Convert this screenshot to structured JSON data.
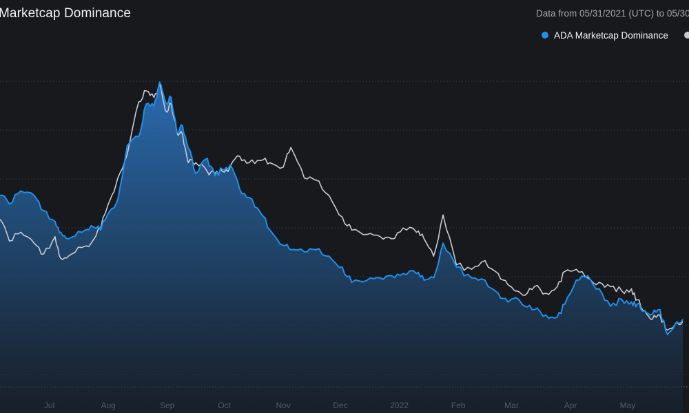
{
  "header": {
    "title": "Marketcap Dominance",
    "date_range": "Data from 05/31/2021 (UTC) to 05/30"
  },
  "colors": {
    "background": "#18191d",
    "ada": "#1e90ec",
    "comparison": "#c8cbd3",
    "grid": "#3a3d45"
  },
  "chart_data": {
    "type": "area",
    "title": "Marketcap Dominance",
    "x_range": [
      "2021-05-31",
      "2022-05-30"
    ],
    "x_tick_labels": [
      "Jul",
      "Aug",
      "Sep",
      "Oct",
      "Nov",
      "Dec",
      "2022",
      "Feb",
      "Mar",
      "Apr",
      "May"
    ],
    "grid": "horizontal-dotted",
    "legend": "top-right",
    "series": [
      {
        "name": "ADA Marketcap Dominance",
        "color": "#1e90ec",
        "x": [
          "2021-06-05",
          "2021-06-10",
          "2021-06-16",
          "2021-06-23",
          "2021-06-28",
          "2021-07-04",
          "2021-07-07",
          "2021-07-11",
          "2021-07-18",
          "2021-07-23",
          "2021-07-28",
          "2021-08-02",
          "2021-08-06",
          "2021-08-11",
          "2021-08-17",
          "2021-08-21",
          "2021-08-25",
          "2021-08-28",
          "2021-08-31",
          "2021-09-03",
          "2021-09-06",
          "2021-09-09",
          "2021-09-12",
          "2021-09-16",
          "2021-09-22",
          "2021-09-26",
          "2021-09-30",
          "2021-10-04",
          "2021-10-09",
          "2021-10-14",
          "2021-10-20",
          "2021-10-25",
          "2021-11-01",
          "2021-11-05",
          "2021-11-12",
          "2021-11-18",
          "2021-11-25",
          "2021-12-02",
          "2021-12-07",
          "2021-12-15",
          "2021-12-22",
          "2021-12-28",
          "2022-01-03",
          "2022-01-10",
          "2022-01-14",
          "2022-01-19",
          "2022-01-24",
          "2022-01-31",
          "2022-02-08",
          "2022-02-15",
          "2022-02-22",
          "2022-02-27",
          "2022-03-03",
          "2022-03-08",
          "2022-03-13",
          "2022-03-19",
          "2022-03-25",
          "2022-03-29",
          "2022-04-04",
          "2022-04-10",
          "2022-04-16",
          "2022-04-22",
          "2022-04-28",
          "2022-05-03",
          "2022-05-06",
          "2022-05-10",
          "2022-05-14",
          "2022-05-18",
          "2022-05-22",
          "2022-05-26",
          "2022-05-30"
        ],
        "values": [
          4.45,
          4.25,
          4.55,
          4.45,
          4.1,
          3.85,
          3.6,
          3.45,
          3.6,
          3.75,
          3.65,
          4.1,
          4.35,
          5.6,
          5.8,
          6.55,
          6.5,
          7.05,
          6.6,
          6.7,
          5.9,
          6.05,
          5.55,
          4.95,
          5.3,
          4.9,
          5.05,
          5.15,
          4.6,
          4.4,
          4.05,
          3.65,
          3.3,
          3.2,
          3.15,
          3.2,
          3.05,
          2.8,
          2.45,
          2.5,
          2.55,
          2.6,
          2.65,
          2.65,
          2.5,
          2.55,
          3.35,
          2.8,
          2.55,
          2.5,
          2.2,
          2.0,
          2.1,
          1.9,
          1.82,
          1.7,
          1.65,
          1.95,
          2.5,
          2.6,
          2.3,
          1.9,
          2.05,
          2.0,
          1.95,
          1.8,
          1.72,
          1.82,
          1.25,
          1.5,
          1.6
        ]
      },
      {
        "name": "",
        "color": "#c8cbd3",
        "x": [
          "2021-06-05",
          "2021-06-10",
          "2021-06-16",
          "2021-06-23",
          "2021-06-28",
          "2021-07-04",
          "2021-07-07",
          "2021-07-11",
          "2021-07-18",
          "2021-07-23",
          "2021-07-28",
          "2021-08-02",
          "2021-08-06",
          "2021-08-11",
          "2021-08-17",
          "2021-08-21",
          "2021-08-25",
          "2021-08-28",
          "2021-08-31",
          "2021-09-03",
          "2021-09-06",
          "2021-09-09",
          "2021-09-12",
          "2021-09-16",
          "2021-09-22",
          "2021-09-26",
          "2021-09-30",
          "2021-10-04",
          "2021-10-09",
          "2021-10-14",
          "2021-10-20",
          "2021-10-25",
          "2021-11-01",
          "2021-11-05",
          "2021-11-12",
          "2021-11-18",
          "2021-11-25",
          "2021-12-02",
          "2021-12-07",
          "2021-12-15",
          "2021-12-22",
          "2021-12-28",
          "2022-01-03",
          "2022-01-10",
          "2022-01-14",
          "2022-01-19",
          "2022-01-24",
          "2022-01-31",
          "2022-02-08",
          "2022-02-15",
          "2022-02-22",
          "2022-02-27",
          "2022-03-03",
          "2022-03-08",
          "2022-03-13",
          "2022-03-19",
          "2022-03-25",
          "2022-03-29",
          "2022-04-04",
          "2022-04-10",
          "2022-04-16",
          "2022-04-22",
          "2022-04-28",
          "2022-05-03",
          "2022-05-06",
          "2022-05-10",
          "2022-05-14",
          "2022-05-18",
          "2022-05-22",
          "2022-05-26",
          "2022-05-30"
        ],
        "values": [
          3.9,
          3.4,
          3.6,
          3.35,
          3.1,
          3.5,
          3.0,
          3.05,
          3.25,
          3.35,
          3.7,
          4.35,
          4.85,
          5.4,
          6.6,
          6.85,
          6.7,
          7.0,
          6.4,
          6.55,
          5.9,
          5.85,
          5.2,
          5.2,
          5.0,
          4.95,
          5.0,
          5.1,
          5.35,
          5.2,
          5.25,
          5.2,
          5.1,
          5.55,
          4.85,
          4.8,
          4.45,
          3.95,
          3.65,
          3.55,
          3.5,
          3.45,
          3.7,
          3.6,
          3.45,
          3.05,
          4.0,
          2.85,
          2.75,
          2.95,
          2.65,
          2.4,
          2.25,
          2.15,
          2.35,
          2.2,
          2.35,
          2.7,
          2.75,
          2.55,
          2.45,
          2.35,
          2.25,
          2.3,
          2.05,
          1.8,
          1.6,
          1.7,
          1.35,
          1.5,
          1.55
        ]
      }
    ]
  }
}
